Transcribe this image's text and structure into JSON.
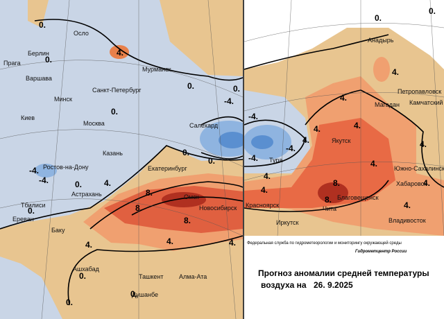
{
  "title": {
    "line1": "Прогноз аномалии средней температуры",
    "line2": "воздуха на",
    "date": "26. 9.2025"
  },
  "credits": {
    "agency": "Федеральная служба по гидрометеорологии и мониторингу окружающей среды",
    "center": "Гидрометцентр России"
  },
  "cities": [
    "Осло",
    "Берлин",
    "Прага",
    "Варшава",
    "Мурманск",
    "Санкт-Петербург",
    "Минск",
    "Киев",
    "Москва",
    "Казань",
    "Ростов-на-Дону",
    "Астрахань",
    "Екатеринбург",
    "Салехард",
    "Омск",
    "Новосибирск",
    "Тбилиси",
    "Ереван",
    "Баку",
    "Ашхабад",
    "Ташкент",
    "Алма-Ата",
    "Душанбе",
    "Анадырь",
    "Петропавловск",
    "Камчатский",
    "Магадан",
    "Якутск",
    "Тура",
    "Южно-Сахалинск",
    "Хабаровск",
    "Благовещенск",
    "Красноярск",
    "Чита",
    "Иркутск",
    "Владивосток"
  ],
  "contours": [
    "0.",
    "0.",
    "4.",
    "0.",
    "0.",
    "0.",
    "0.",
    "-4.",
    "0.",
    "-4.",
    "-4.",
    "4.",
    "0.",
    "8.",
    "8.",
    "8.",
    "4.",
    "4.",
    "4.",
    "0.",
    "0.",
    "0.",
    "0.",
    "0.",
    "4.",
    "4.",
    "4.",
    "4.",
    "-4.",
    "-4.",
    "-4.",
    "4.",
    "4.",
    "4.",
    "8.",
    "8.",
    "4.",
    "4.",
    "4.",
    "0.",
    "4."
  ]
}
